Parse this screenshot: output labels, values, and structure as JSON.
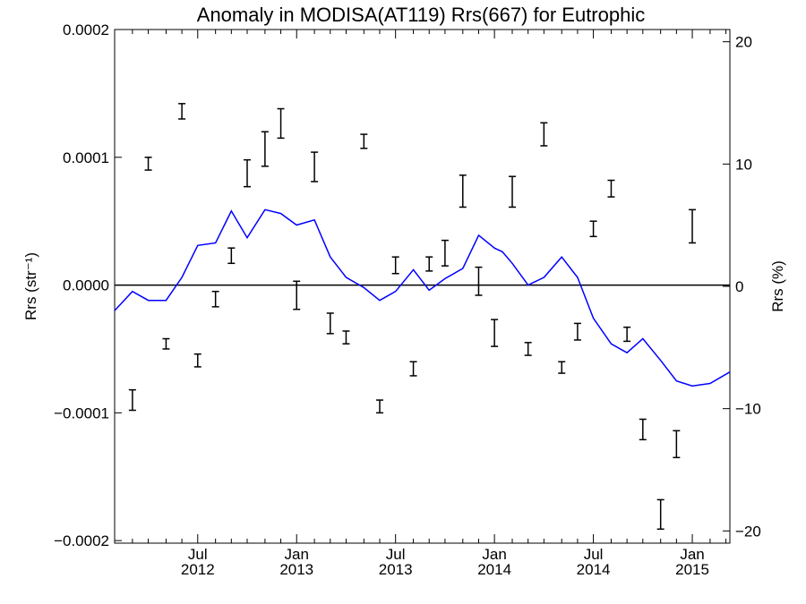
{
  "chart_data": {
    "type": "line",
    "title": "Anomaly in MODISA(AT119) Rrs(667) for Eutrophic",
    "ylabel_left": "Rrs (str⁻¹)",
    "ylabel_right": "Rrs (%)",
    "xlabel": "",
    "ylim_left": [
      -0.000202,
      0.0002
    ],
    "ylim_right": [
      -21,
      21
    ],
    "xlim": [
      2012.0,
      2015.11
    ],
    "y_ticks_left": [
      {
        "value": 0.0002,
        "label": "0.0002"
      },
      {
        "value": 0.0001,
        "label": "0.0001"
      },
      {
        "value": 0.0,
        "label": "0.0000"
      },
      {
        "value": -0.0001,
        "label": "−0.0001"
      },
      {
        "value": -0.0002,
        "label": "−0.0002"
      }
    ],
    "y_ticks_right": [
      {
        "value": 20,
        "label": "20"
      },
      {
        "value": 10,
        "label": "10"
      },
      {
        "value": 0,
        "label": "0"
      },
      {
        "value": -10,
        "label": "−10"
      },
      {
        "value": -20,
        "label": "−20"
      }
    ],
    "x_ticks": [
      {
        "value": 2012.42,
        "month": "Jul",
        "year": "2012"
      },
      {
        "value": 2012.92,
        "month": "Jan",
        "year": "2013"
      },
      {
        "value": 2013.42,
        "month": "Jul",
        "year": "2013"
      },
      {
        "value": 2013.92,
        "month": "Jan",
        "year": "2014"
      },
      {
        "value": 2014.42,
        "month": "Jul",
        "year": "2014"
      },
      {
        "value": 2014.92,
        "month": "Jan",
        "year": "2015"
      }
    ],
    "x_minor_ticks": [
      2012.09,
      2012.17,
      2012.26,
      2012.34,
      2012.51,
      2012.59,
      2012.67,
      2012.76,
      2012.84,
      2013.01,
      2013.09,
      2013.17,
      2013.26,
      2013.34,
      2013.51,
      2013.59,
      2013.67,
      2013.76,
      2013.84,
      2014.01,
      2014.09,
      2014.17,
      2014.26,
      2014.34,
      2014.51,
      2014.59,
      2014.67,
      2014.76,
      2014.84,
      2015.01,
      2015.09
    ],
    "reference_line": 0.0,
    "series": [
      {
        "color": "#0000ff",
        "x": [
          2012.0,
          2012.09,
          2012.17,
          2012.26,
          2012.34,
          2012.42,
          2012.51,
          2012.59,
          2012.67,
          2012.76,
          2012.84,
          2012.92,
          2013.01,
          2013.09,
          2013.17,
          2013.26,
          2013.34,
          2013.42,
          2013.51,
          2013.59,
          2013.67,
          2013.76,
          2013.84,
          2013.92,
          2013.96,
          2014.01,
          2014.09,
          2014.17,
          2014.26,
          2014.34,
          2014.42,
          2014.51,
          2014.59,
          2014.67,
          2014.76,
          2014.84,
          2014.92,
          2015.01,
          2015.11
        ],
        "y": [
          -2e-05,
          -5e-06,
          -1.2e-05,
          -1.2e-05,
          6e-06,
          3.1e-05,
          3.3e-05,
          5.8e-05,
          3.7e-05,
          5.9e-05,
          5.6e-05,
          4.7e-05,
          5.1e-05,
          2.2e-05,
          6e-06,
          -2e-06,
          -1.2e-05,
          -5e-06,
          1.2e-05,
          -4e-06,
          5e-06,
          1.3e-05,
          3.9e-05,
          2.9e-05,
          2.6e-05,
          1.7e-05,
          0.0,
          6e-06,
          2.2e-05,
          6e-06,
          -2.6e-05,
          -4.6e-05,
          -5.3e-05,
          -4.2e-05,
          -5.9e-05,
          -7.5e-05,
          -7.9e-05,
          -7.7e-05,
          -6.8e-05
        ]
      }
    ],
    "error_bars": [
      {
        "x": 2012.09,
        "low": -9.8e-05,
        "high": -8.2e-05
      },
      {
        "x": 2012.17,
        "low": 9e-05,
        "high": 0.0001
      },
      {
        "x": 2012.26,
        "low": -5e-05,
        "high": -4.2e-05
      },
      {
        "x": 2012.34,
        "low": 0.00013,
        "high": 0.000142
      },
      {
        "x": 2012.42,
        "low": -6.4e-05,
        "high": -5.4e-05
      },
      {
        "x": 2012.51,
        "low": -1.7e-05,
        "high": -5e-06
      },
      {
        "x": 2012.59,
        "low": 1.7e-05,
        "high": 2.9e-05
      },
      {
        "x": 2012.67,
        "low": 7.7e-05,
        "high": 9.8e-05
      },
      {
        "x": 2012.76,
        "low": 9.3e-05,
        "high": 0.00012
      },
      {
        "x": 2012.84,
        "low": 0.000115,
        "high": 0.000138
      },
      {
        "x": 2012.92,
        "low": -1.9e-05,
        "high": 3e-06
      },
      {
        "x": 2013.01,
        "low": 8.1e-05,
        "high": 0.000104
      },
      {
        "x": 2013.09,
        "low": -3.8e-05,
        "high": -2.2e-05
      },
      {
        "x": 2013.17,
        "low": -4.6e-05,
        "high": -3.6e-05
      },
      {
        "x": 2013.26,
        "low": 0.000107,
        "high": 0.000118
      },
      {
        "x": 2013.34,
        "low": -0.0001,
        "high": -9e-05
      },
      {
        "x": 2013.42,
        "low": 9e-06,
        "high": 2.2e-05
      },
      {
        "x": 2013.51,
        "low": -7.1e-05,
        "high": -6e-05
      },
      {
        "x": 2013.59,
        "low": 1.1e-05,
        "high": 2.2e-05
      },
      {
        "x": 2013.67,
        "low": 1.5e-05,
        "high": 3.5e-05
      },
      {
        "x": 2013.76,
        "low": 6.1e-05,
        "high": 8.6e-05
      },
      {
        "x": 2013.84,
        "low": -8e-06,
        "high": 1.4e-05
      },
      {
        "x": 2013.92,
        "low": -4.8e-05,
        "high": -2.7e-05
      },
      {
        "x": 2014.01,
        "low": 6.1e-05,
        "high": 8.5e-05
      },
      {
        "x": 2014.09,
        "low": -5.5e-05,
        "high": -4.5e-05
      },
      {
        "x": 2014.17,
        "low": 0.000109,
        "high": 0.000127
      },
      {
        "x": 2014.26,
        "low": -6.9e-05,
        "high": -6e-05
      },
      {
        "x": 2014.34,
        "low": -4.3e-05,
        "high": -3e-05
      },
      {
        "x": 2014.42,
        "low": 3.8e-05,
        "high": 5e-05
      },
      {
        "x": 2014.51,
        "low": 6.9e-05,
        "high": 8.2e-05
      },
      {
        "x": 2014.59,
        "low": -4.4e-05,
        "high": -3.3e-05
      },
      {
        "x": 2014.67,
        "low": -0.000121,
        "high": -0.000105
      },
      {
        "x": 2014.76,
        "low": -0.000191,
        "high": -0.000168
      },
      {
        "x": 2014.84,
        "low": -0.000135,
        "high": -0.000114
      },
      {
        "x": 2014.92,
        "low": 3.3e-05,
        "high": 5.9e-05
      }
    ],
    "grid": false,
    "legend": "none"
  }
}
